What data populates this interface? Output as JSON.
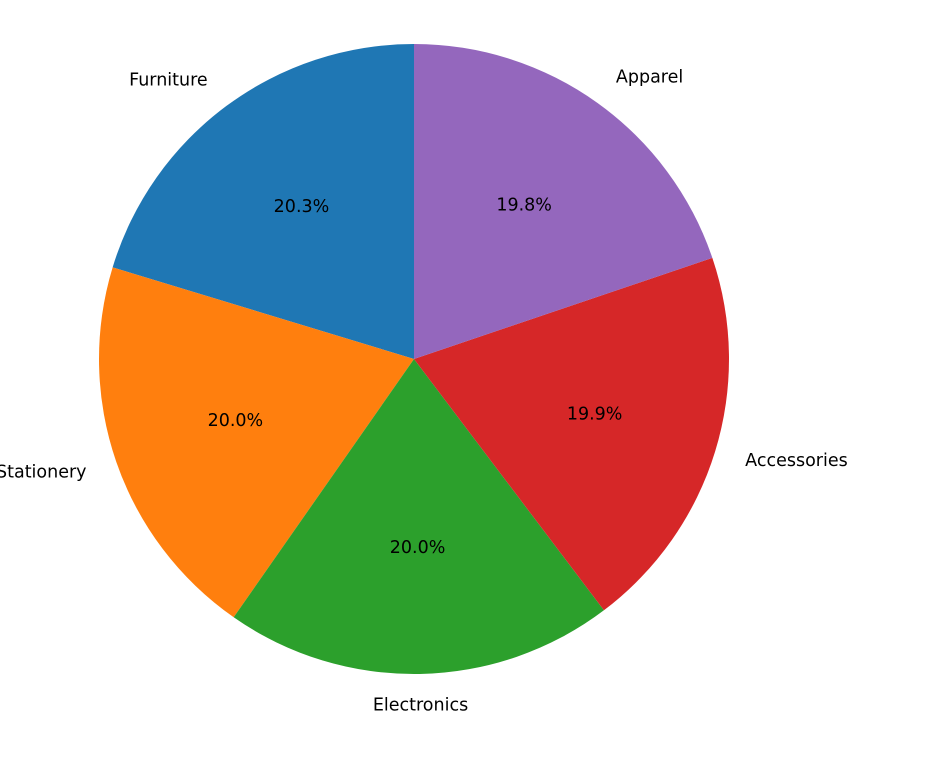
{
  "chart_data": {
    "type": "pie",
    "title": "",
    "categories": [
      "Furniture",
      "Stationery",
      "Electronics",
      "Accessories",
      "Apparel"
    ],
    "values": [
      20.3,
      20.0,
      20.0,
      19.9,
      19.8
    ],
    "percent_labels": [
      "20.3%",
      "20.0%",
      "20.0%",
      "19.9%",
      "19.8%"
    ],
    "colors": [
      "#1f77b4",
      "#ff7f0e",
      "#2ca02c",
      "#d62728",
      "#9467bd"
    ],
    "start_angle_deg": 90,
    "direction": "counterclockwise",
    "legend": "none"
  }
}
